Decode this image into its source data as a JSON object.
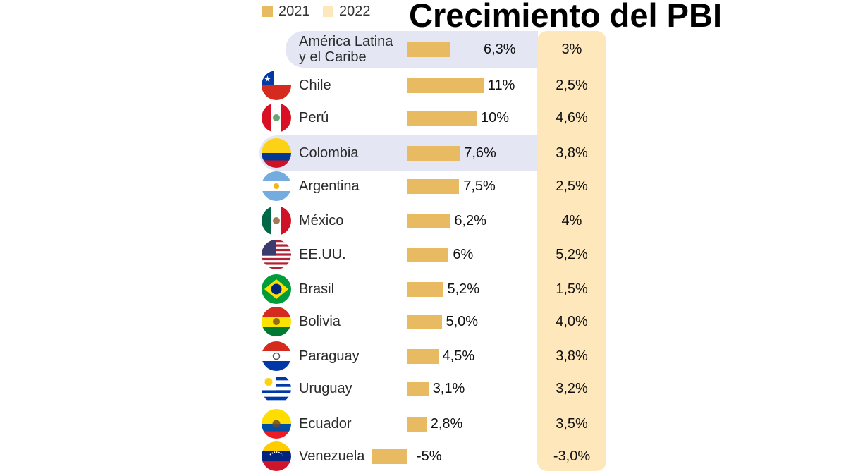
{
  "title": "Crecimiento del PBI",
  "legend": [
    {
      "label": "2021",
      "color": "#e8bb62"
    },
    {
      "label": "2022",
      "color": "#fde7bb"
    }
  ],
  "chart_data": {
    "type": "bar",
    "title": "Crecimiento del PBI",
    "xlabel": "",
    "ylabel": "",
    "unit": "%",
    "categories": [
      "América Latina y el Caribe",
      "Chile",
      "Perú",
      "Colombia",
      "Argentina",
      "México",
      "EE.UU.",
      "Brasil",
      "Bolivia",
      "Paraguay",
      "Uruguay",
      "Ecuador",
      "Venezuela"
    ],
    "highlighted": [
      "América Latina y el Caribe",
      "Colombia"
    ],
    "series": [
      {
        "name": "2021",
        "values": [
          6.3,
          11,
          10,
          7.6,
          7.5,
          6.2,
          6,
          5.2,
          5.0,
          4.5,
          3.1,
          2.8,
          -5
        ],
        "labels": [
          "6,3%",
          "11%",
          "10%",
          "7,6%",
          "7,5%",
          "6,2%",
          "6%",
          "5,2%",
          "5,0%",
          "4,5%",
          "3,1%",
          "2,8%",
          "-5%"
        ]
      },
      {
        "name": "2022",
        "values": [
          3,
          2.5,
          4.6,
          3.8,
          2.5,
          4,
          5.2,
          1.5,
          4.0,
          3.8,
          3.2,
          3.5,
          -3.0
        ],
        "labels": [
          "3%",
          "2,5%",
          "4,6%",
          "3,8%",
          "2,5%",
          "4%",
          "5,2%",
          "1,5%",
          "4,0%",
          "3,8%",
          "3,2%",
          "3,5%",
          "-3,0%"
        ]
      }
    ],
    "flags": [
      "",
      "chile-flag-icon",
      "peru-flag-icon",
      "colombia-flag-icon",
      "argentina-flag-icon",
      "mexico-flag-icon",
      "usa-flag-icon",
      "brazil-flag-icon",
      "bolivia-flag-icon",
      "paraguay-flag-icon",
      "uruguay-flag-icon",
      "ecuador-flag-icon",
      "venezuela-flag-icon"
    ],
    "grid": false,
    "legend_position": "top-left"
  }
}
